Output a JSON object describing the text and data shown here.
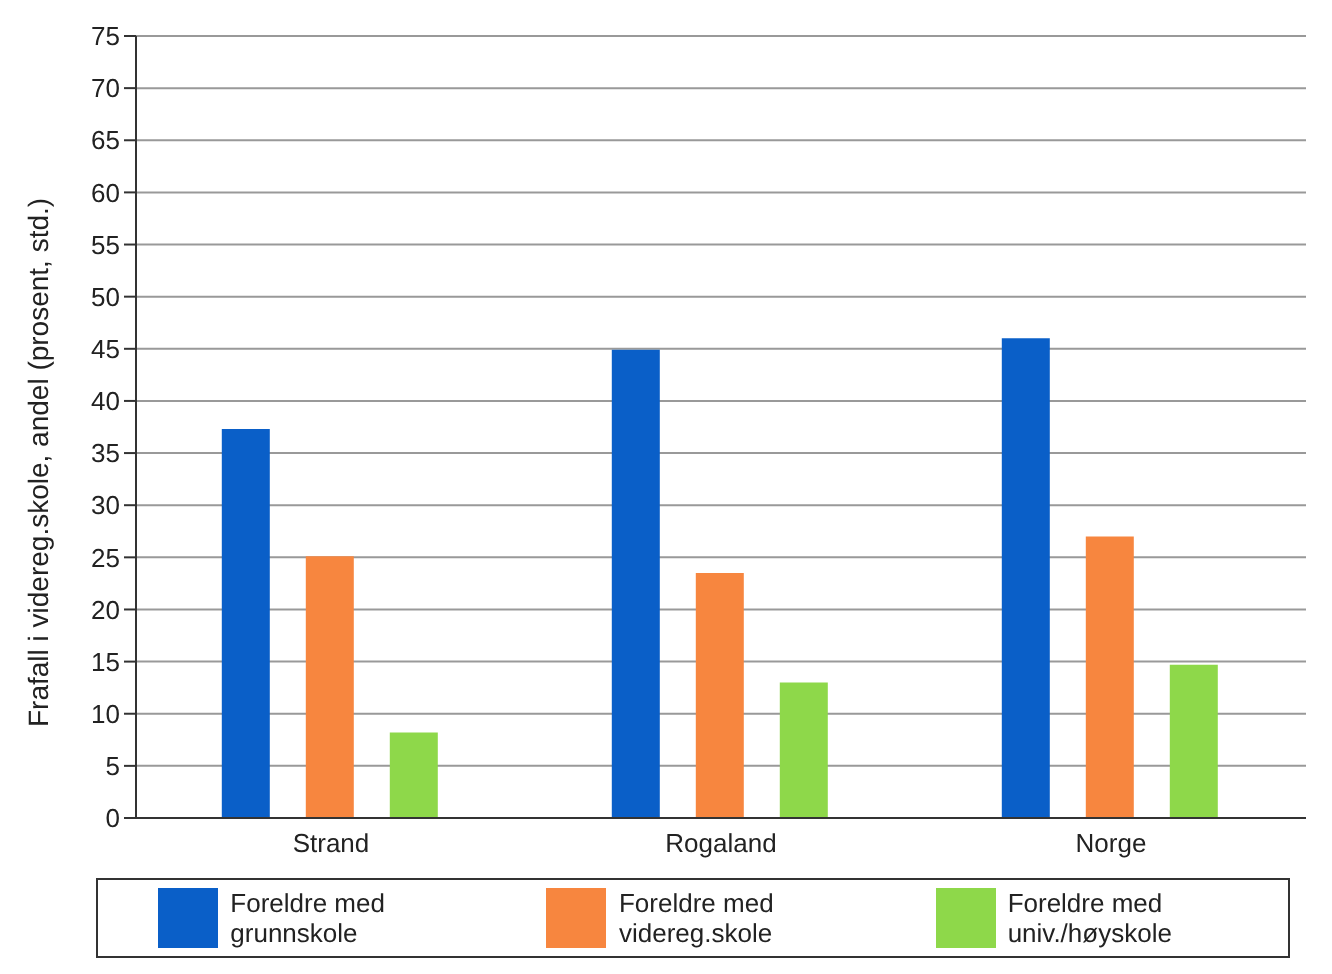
{
  "chart_data": {
    "type": "bar",
    "ylabel": "Frafall i videreg.skole, andel (prosent, std.)",
    "categories": [
      "Strand",
      "Rogaland",
      "Norge"
    ],
    "series": [
      {
        "name": "Foreldre med grunnskole",
        "color": "#0a5fc8",
        "values": [
          37.3,
          44.9,
          46.0
        ]
      },
      {
        "name": "Foreldre med videreg.skole",
        "color": "#f7863f",
        "values": [
          25.1,
          23.5,
          27.0
        ]
      },
      {
        "name": "Foreldre med univ./høyskole",
        "color": "#8ed84a",
        "values": [
          8.2,
          13.0,
          14.7
        ]
      }
    ],
    "ylim": [
      0,
      75
    ],
    "yticks": [
      0,
      5,
      10,
      15,
      20,
      25,
      30,
      35,
      40,
      45,
      50,
      55,
      60,
      65,
      70,
      75
    ],
    "grid": "y",
    "legend": "bottom"
  }
}
